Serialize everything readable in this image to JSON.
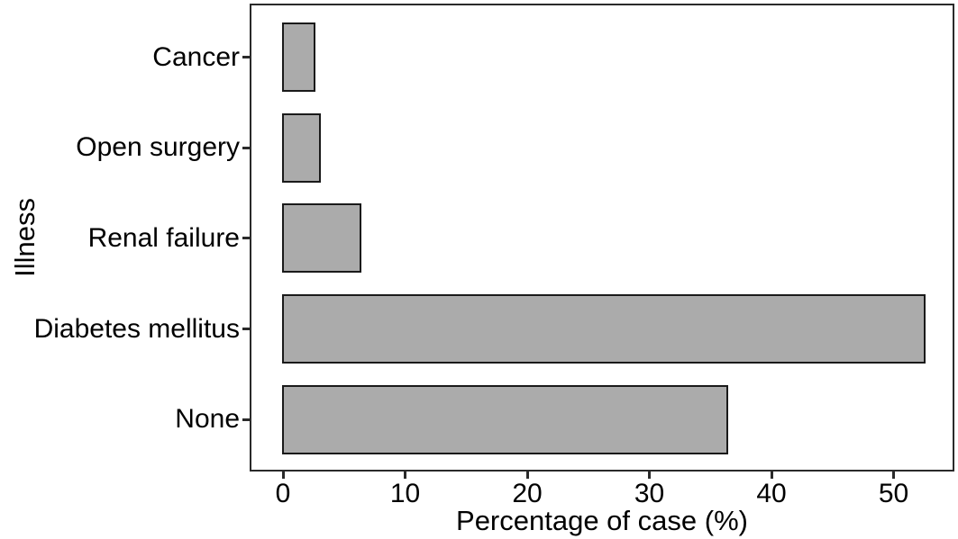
{
  "chart_data": {
    "type": "bar",
    "orientation": "horizontal",
    "categories": [
      "Cancer",
      "Open surgery",
      "Renal failure",
      "Diabetes mellitus",
      "None"
    ],
    "values": [
      2.4,
      2.9,
      6.2,
      52.4,
      36.2
    ],
    "xlabel": "Percentage of case (%)",
    "ylabel": "Illness",
    "x_ticks": [
      0,
      10,
      20,
      30,
      40,
      50
    ],
    "xlim": [
      -2.6,
      54.8
    ],
    "grid": false,
    "legend": false,
    "bar_fill_color": "#ababab",
    "bar_border_color": "#1a1a1a",
    "axis_color": "#2a2a2a",
    "text_color": "#000000",
    "background_color": "#ffffff"
  }
}
